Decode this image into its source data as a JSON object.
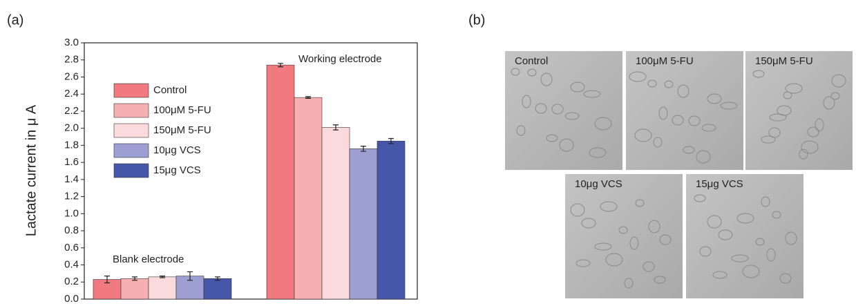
{
  "panel_labels": [
    "(a)",
    "(b)"
  ],
  "chart_data": {
    "type": "bar",
    "ylabel": "Lactate current in μ A",
    "categories": [
      "Blank electrode",
      "Working electrode"
    ],
    "series": [
      {
        "name": "Control",
        "color": "#f07a80",
        "values": [
          0.23,
          2.74
        ],
        "errors": [
          0.04,
          0.02
        ]
      },
      {
        "name": "100μM 5-FU",
        "color": "#f7b0b2",
        "values": [
          0.24,
          2.36
        ],
        "errors": [
          0.02,
          0.01
        ]
      },
      {
        "name": "150μM 5-FU",
        "color": "#fbdadd",
        "values": [
          0.26,
          2.01
        ],
        "errors": [
          0.01,
          0.03
        ]
      },
      {
        "name": "10μg VCS",
        "color": "#9d9fd3",
        "values": [
          0.27,
          1.76
        ],
        "errors": [
          0.05,
          0.03
        ]
      },
      {
        "name": "15μg VCS",
        "color": "#4656a8",
        "values": [
          0.24,
          1.85
        ],
        "errors": [
          0.02,
          0.03
        ]
      }
    ],
    "ylim": [
      0,
      3.0
    ],
    "yticks": [
      {
        "value": 0,
        "label": "0.0"
      },
      0.2,
      0.4,
      0.6,
      0.8,
      {
        "value": 1,
        "label": "1.0"
      },
      1.2,
      1.4,
      1.6,
      1.8,
      {
        "value": 2,
        "label": "2.0"
      },
      2.2,
      2.4,
      2.6,
      2.8,
      {
        "value": 3,
        "label": "3.0"
      }
    ],
    "legend": "upper left"
  },
  "images": [
    {
      "label": "Control"
    },
    {
      "label": "100μM 5-FU"
    },
    {
      "label": "150μM 5-FU"
    },
    {
      "label": "10μg VCS"
    },
    {
      "label": "15μg VCS"
    }
  ]
}
